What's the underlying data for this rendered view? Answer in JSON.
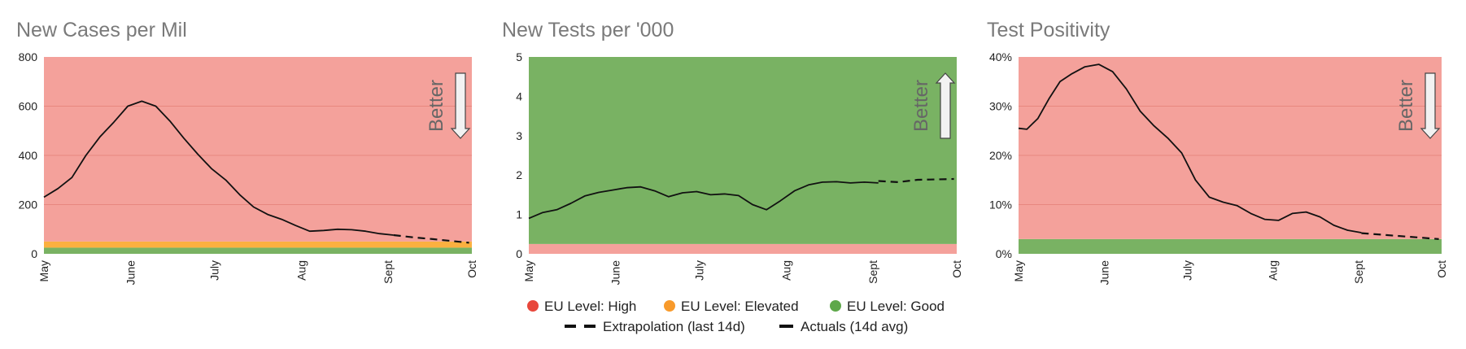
{
  "colors": {
    "high": "#f4a19b",
    "elevated": "#fbb040",
    "good": "#79b263",
    "gridline": "#e8877f",
    "line": "#111111",
    "arrow_fill": "#f2f2f2",
    "arrow_stroke": "#444444"
  },
  "legend": {
    "items": [
      {
        "label": "EU Level: High",
        "marker": "circle",
        "color": "#e8473b"
      },
      {
        "label": "EU Level: Elevated",
        "marker": "circle",
        "color": "#f89a2b"
      },
      {
        "label": "EU Level: Good",
        "marker": "circle",
        "color": "#5ea84a"
      },
      {
        "label": "Extrapolation (last 14d)",
        "marker": "dashed-line",
        "color": "#111111"
      },
      {
        "label": "Actuals (14d avg)",
        "marker": "solid-line",
        "color": "#111111"
      }
    ]
  },
  "chart_data": [
    {
      "type": "line",
      "title": "New Cases per Mil",
      "better_label": "Better",
      "better_direction": "down",
      "x_ticks": [
        "May",
        "June",
        "July",
        "Aug",
        "Sept",
        "Oct"
      ],
      "x_tick_days": [
        0,
        31,
        61,
        92,
        123,
        153
      ],
      "y_ticks": [
        "0",
        "200",
        "400",
        "600",
        "800"
      ],
      "y_tick_values": [
        0,
        200,
        400,
        600,
        800
      ],
      "ylim": [
        0,
        800
      ],
      "grid": true,
      "bands": [
        {
          "level": "good",
          "from": 0,
          "to": 25
        },
        {
          "level": "elevated",
          "from": 25,
          "to": 50
        },
        {
          "level": "high",
          "from": 50,
          "to": 800
        }
      ],
      "series": [
        {
          "name": "Actuals (14d avg)",
          "style": "solid",
          "x": [
            "2020-05-01",
            "2020-05-06",
            "2020-05-11",
            "2020-05-16",
            "2020-05-21",
            "2020-05-26",
            "2020-05-31",
            "2020-06-05",
            "2020-06-10",
            "2020-06-15",
            "2020-06-20",
            "2020-06-25",
            "2020-06-30",
            "2020-07-05",
            "2020-07-10",
            "2020-07-15",
            "2020-07-20",
            "2020-07-25",
            "2020-07-30",
            "2020-08-04",
            "2020-08-09",
            "2020-08-14",
            "2020-08-19",
            "2020-08-24",
            "2020-08-29",
            "2020-09-03"
          ],
          "y": [
            230,
            265,
            310,
            400,
            475,
            535,
            600,
            620,
            600,
            540,
            470,
            405,
            345,
            300,
            240,
            190,
            160,
            140,
            115,
            92,
            95,
            100,
            98,
            92,
            82,
            76
          ]
        },
        {
          "name": "Extrapolation (last 14d)",
          "style": "dashed",
          "x": [
            "2020-09-03",
            "2020-09-10",
            "2020-09-17",
            "2020-09-24",
            "2020-09-30"
          ],
          "y": [
            76,
            67,
            60,
            52,
            45
          ]
        }
      ]
    },
    {
      "type": "line",
      "title": "New Tests per '000",
      "better_label": "Better",
      "better_direction": "up",
      "x_ticks": [
        "May",
        "June",
        "July",
        "Aug",
        "Sept",
        "Oct"
      ],
      "x_tick_days": [
        0,
        31,
        61,
        92,
        123,
        153
      ],
      "y_ticks": [
        "0",
        "1",
        "2",
        "3",
        "4",
        "5"
      ],
      "y_tick_values": [
        0,
        1,
        2,
        3,
        4,
        5
      ],
      "ylim": [
        0,
        5
      ],
      "grid": false,
      "bands": [
        {
          "level": "high",
          "from": 0,
          "to": 0.25
        },
        {
          "level": "good",
          "from": 0.25,
          "to": 5
        }
      ],
      "series": [
        {
          "name": "Actuals (14d avg)",
          "style": "solid",
          "x": [
            "2020-05-01",
            "2020-05-06",
            "2020-05-11",
            "2020-05-16",
            "2020-05-21",
            "2020-05-26",
            "2020-05-31",
            "2020-06-05",
            "2020-06-10",
            "2020-06-15",
            "2020-06-20",
            "2020-06-25",
            "2020-06-30",
            "2020-07-05",
            "2020-07-10",
            "2020-07-15",
            "2020-07-20",
            "2020-07-25",
            "2020-07-30",
            "2020-08-04",
            "2020-08-09",
            "2020-08-14",
            "2020-08-19",
            "2020-08-24",
            "2020-08-29",
            "2020-09-03"
          ],
          "y": [
            0.9,
            1.05,
            1.12,
            1.28,
            1.47,
            1.56,
            1.62,
            1.68,
            1.7,
            1.6,
            1.45,
            1.55,
            1.58,
            1.5,
            1.52,
            1.48,
            1.25,
            1.12,
            1.35,
            1.6,
            1.75,
            1.82,
            1.83,
            1.8,
            1.82,
            1.8
          ]
        },
        {
          "name": "Extrapolation (last 14d)",
          "style": "dashed",
          "x": [
            "2020-09-03",
            "2020-09-10",
            "2020-09-17",
            "2020-09-24",
            "2020-09-30"
          ],
          "y": [
            1.85,
            1.82,
            1.88,
            1.89,
            1.9
          ]
        }
      ]
    },
    {
      "type": "line",
      "title": "Test Positivity",
      "better_label": "Better",
      "better_direction": "down",
      "x_ticks": [
        "May",
        "June",
        "July",
        "Aug",
        "Sept",
        "Oct"
      ],
      "x_tick_days": [
        0,
        31,
        61,
        92,
        123,
        153
      ],
      "y_ticks": [
        "0%",
        "10%",
        "20%",
        "30%",
        "40%"
      ],
      "y_tick_values": [
        0,
        10,
        20,
        30,
        40
      ],
      "ylim": [
        0,
        40
      ],
      "grid": true,
      "bands": [
        {
          "level": "good",
          "from": 0,
          "to": 3
        },
        {
          "level": "high",
          "from": 3,
          "to": 40
        }
      ],
      "series": [
        {
          "name": "Actuals (14d avg)",
          "style": "solid",
          "x": [
            "2020-05-01",
            "2020-05-04",
            "2020-05-08",
            "2020-05-12",
            "2020-05-16",
            "2020-05-20",
            "2020-05-25",
            "2020-05-30",
            "2020-06-04",
            "2020-06-09",
            "2020-06-14",
            "2020-06-19",
            "2020-06-24",
            "2020-06-29",
            "2020-07-04",
            "2020-07-09",
            "2020-07-14",
            "2020-07-19",
            "2020-07-24",
            "2020-07-29",
            "2020-08-03",
            "2020-08-08",
            "2020-08-13",
            "2020-08-18",
            "2020-08-23",
            "2020-08-28",
            "2020-09-02"
          ],
          "y": [
            25.5,
            25.3,
            27.5,
            31.5,
            35,
            36.5,
            38,
            38.5,
            37,
            33.5,
            29,
            26,
            23.5,
            20.5,
            15,
            11.5,
            10.5,
            9.8,
            8.2,
            7,
            6.8,
            8.2,
            8.5,
            7.5,
            5.8,
            4.8,
            4.3
          ]
        },
        {
          "name": "Extrapolation (last 14d)",
          "style": "dashed",
          "x": [
            "2020-09-02",
            "2020-09-09",
            "2020-09-16",
            "2020-09-23",
            "2020-09-30"
          ],
          "y": [
            4.2,
            3.9,
            3.6,
            3.3,
            3.0
          ]
        }
      ]
    }
  ]
}
